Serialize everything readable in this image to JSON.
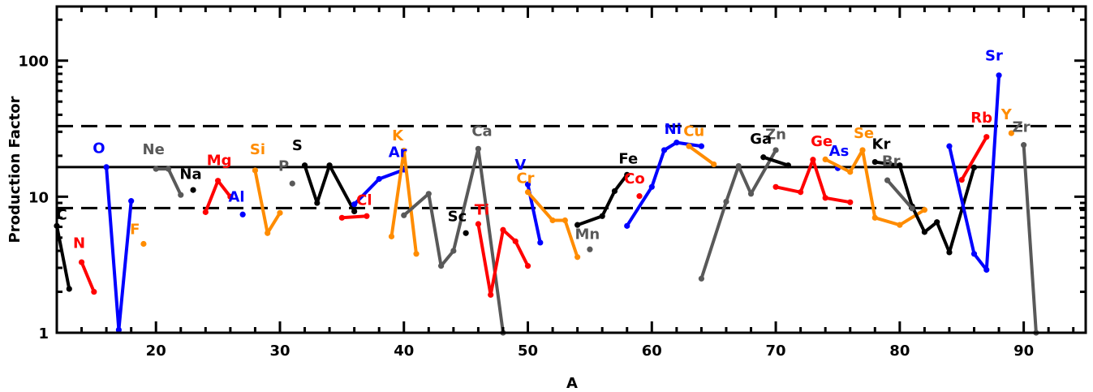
{
  "chart_data": {
    "type": "line",
    "xlabel": "A",
    "ylabel": "Production Factor",
    "xlim": [
      12,
      95
    ],
    "ylim": [
      1,
      250
    ],
    "yscale": "log",
    "x_ticks": [
      20,
      30,
      40,
      50,
      60,
      70,
      80,
      90
    ],
    "y_ticks": [
      {
        "value": 1,
        "label": "1"
      },
      {
        "value": 10,
        "label": "10"
      },
      {
        "value": 100,
        "label": "100"
      }
    ],
    "reference_lines": [
      {
        "y": 16.5,
        "style": "solid"
      },
      {
        "y": 33,
        "style": "dashed"
      },
      {
        "y": 8.25,
        "style": "dashed"
      }
    ],
    "colors": {
      "black": "#000000",
      "red": "#ff0000",
      "blue": "#0000ff",
      "orange": "#ff8c00",
      "gray": "#595959"
    },
    "series": [
      {
        "name": "C",
        "color": "black",
        "x": [
          12,
          13
        ],
        "y": [
          6.1,
          2.1
        ],
        "label_at": [
          12.4,
          6.8
        ]
      },
      {
        "name": "N",
        "color": "red",
        "x": [
          14,
          15
        ],
        "y": [
          3.3,
          2.0
        ],
        "label_at": [
          13.8,
          4.2
        ]
      },
      {
        "name": "O",
        "color": "blue",
        "x": [
          16,
          17,
          18
        ],
        "y": [
          16.5,
          1.05,
          9.3
        ],
        "label_at": [
          15.4,
          21
        ]
      },
      {
        "name": "F",
        "color": "orange",
        "x": [
          19
        ],
        "y": [
          4.5
        ],
        "label_at": [
          18.3,
          5.3
        ]
      },
      {
        "name": "Ne",
        "color": "gray",
        "x": [
          20,
          21,
          22
        ],
        "y": [
          16,
          16,
          10.3
        ],
        "label_at": [
          19.8,
          20.5
        ]
      },
      {
        "name": "Na",
        "color": "black",
        "x": [
          23
        ],
        "y": [
          11.2
        ],
        "label_at": [
          22.8,
          13.5
        ]
      },
      {
        "name": "Mg",
        "color": "red",
        "x": [
          24,
          25,
          26
        ],
        "y": [
          7.7,
          13.1,
          10
        ],
        "label_at": [
          25.1,
          17
        ]
      },
      {
        "name": "Al",
        "color": "blue",
        "x": [
          27
        ],
        "y": [
          7.4
        ],
        "label_at": [
          26.5,
          9.2
        ]
      },
      {
        "name": "Si",
        "color": "orange",
        "x": [
          28,
          29,
          30
        ],
        "y": [
          15.6,
          5.4,
          7.6
        ],
        "label_at": [
          28.2,
          20.5
        ]
      },
      {
        "name": "P",
        "color": "gray",
        "x": [
          31
        ],
        "y": [
          12.5
        ],
        "label_at": [
          30.3,
          15.5
        ]
      },
      {
        "name": "S",
        "color": "black",
        "x": [
          32,
          33,
          34,
          36
        ],
        "y": [
          17,
          9,
          17,
          7.8
        ],
        "label_at": [
          31.4,
          22
        ]
      },
      {
        "name": "Cl",
        "color": "red",
        "x": [
          35,
          37
        ],
        "y": [
          7,
          7.2
        ],
        "label_at": [
          36.8,
          8.7
        ]
      },
      {
        "name": "Ar",
        "color": "blue",
        "x": [
          36,
          38,
          40
        ],
        "y": [
          8.8,
          13.5,
          15.8
        ],
        "label_at": [
          39.5,
          19.5
        ]
      },
      {
        "name": "K",
        "color": "orange",
        "x": [
          39,
          40,
          41
        ],
        "y": [
          5.1,
          21.8,
          3.8
        ],
        "label_at": [
          39.5,
          26
        ]
      },
      {
        "name": "Ca",
        "color": "gray",
        "x": [
          40,
          42,
          43,
          44,
          46,
          48
        ],
        "y": [
          7.3,
          10.5,
          3.1,
          4.0,
          22.5,
          1.0
        ],
        "label_at": [
          46.3,
          28
        ]
      },
      {
        "name": "Sc",
        "color": "black",
        "x": [
          45
        ],
        "y": [
          5.4
        ],
        "label_at": [
          44.3,
          6.6
        ]
      },
      {
        "name": "Ti",
        "color": "red",
        "x": [
          46,
          47,
          48,
          49,
          50
        ],
        "y": [
          6.3,
          1.9,
          5.7,
          4.7,
          3.1
        ],
        "label_at": [
          46.3,
          7.4
        ]
      },
      {
        "name": "V",
        "color": "blue",
        "x": [
          50,
          51
        ],
        "y": [
          12.3,
          4.6
        ],
        "label_at": [
          49.4,
          15.8
        ]
      },
      {
        "name": "Cr",
        "color": "orange",
        "x": [
          50,
          52,
          53,
          54
        ],
        "y": [
          10.8,
          6.7,
          6.7,
          3.6
        ],
        "label_at": [
          49.8,
          12.6
        ]
      },
      {
        "name": "Mn",
        "color": "gray",
        "x": [
          55
        ],
        "y": [
          4.1
        ],
        "label_at": [
          54.8,
          4.9
        ]
      },
      {
        "name": "Fe",
        "color": "black",
        "x": [
          54,
          56,
          57,
          58
        ],
        "y": [
          6.2,
          7.2,
          11,
          14.5
        ],
        "label_at": [
          58.1,
          17.5
        ]
      },
      {
        "name": "Co",
        "color": "red",
        "x": [
          59
        ],
        "y": [
          10.1
        ],
        "label_at": [
          58.6,
          12.5
        ]
      },
      {
        "name": "Ni",
        "color": "blue",
        "x": [
          58,
          60,
          61,
          62,
          64
        ],
        "y": [
          6.1,
          11.8,
          22,
          25,
          23.5
        ],
        "label_at": [
          61.7,
          29
        ]
      },
      {
        "name": "Cu",
        "color": "orange",
        "x": [
          63,
          65
        ],
        "y": [
          23.5,
          17.3
        ],
        "label_at": [
          63.4,
          28
        ]
      },
      {
        "name": "Zn",
        "color": "gray",
        "x": [
          64,
          66,
          67,
          68,
          70
        ],
        "y": [
          2.5,
          9.2,
          16.8,
          10.5,
          22
        ],
        "label_at": [
          70,
          26.5
        ]
      },
      {
        "name": "Ga",
        "color": "black",
        "x": [
          69,
          71
        ],
        "y": [
          19.5,
          17
        ],
        "label_at": [
          68.8,
          24.5
        ]
      },
      {
        "name": "Ge",
        "color": "red",
        "x": [
          70,
          72,
          73,
          74,
          76
        ],
        "y": [
          11.8,
          10.8,
          18.7,
          9.8,
          9.1
        ],
        "label_at": [
          73.7,
          23.5
        ]
      },
      {
        "name": "As",
        "color": "blue",
        "x": [
          75
        ],
        "y": [
          16.2
        ],
        "label_at": [
          75.1,
          20
        ]
      },
      {
        "name": "Se",
        "color": "orange",
        "x": [
          74,
          76,
          77,
          78,
          80,
          82
        ],
        "y": [
          18.8,
          15.2,
          22,
          7,
          6.2,
          8
        ],
        "label_at": [
          77.1,
          27
        ]
      },
      {
        "name": "Kr",
        "color": "black",
        "x": [
          78,
          80,
          81,
          82,
          83,
          84,
          86
        ],
        "y": [
          18,
          17,
          8.5,
          5.5,
          6.5,
          3.9,
          16.4
        ],
        "label_at": [
          78.5,
          22.5
        ]
      },
      {
        "name": "Br",
        "color": "gray",
        "x": [
          79,
          81
        ],
        "y": [
          13.2,
          8.2
        ],
        "label_at": [
          79.3,
          16.8
        ]
      },
      {
        "name": "Rb",
        "color": "red",
        "x": [
          85,
          87
        ],
        "y": [
          13.3,
          27.5
        ],
        "label_at": [
          86.6,
          35
        ]
      },
      {
        "name": "Sr",
        "color": "blue",
        "x": [
          84,
          86,
          87,
          88
        ],
        "y": [
          23.5,
          3.8,
          2.9,
          78
        ],
        "label_at": [
          87.6,
          100
        ]
      },
      {
        "name": "Y",
        "color": "orange",
        "x": [
          89
        ],
        "y": [
          29.3
        ],
        "label_at": [
          88.6,
          37
        ]
      },
      {
        "name": "Zr",
        "color": "gray",
        "x": [
          90,
          91
        ],
        "y": [
          24,
          1.0
        ],
        "label_at": [
          89.8,
          30
        ]
      }
    ]
  }
}
